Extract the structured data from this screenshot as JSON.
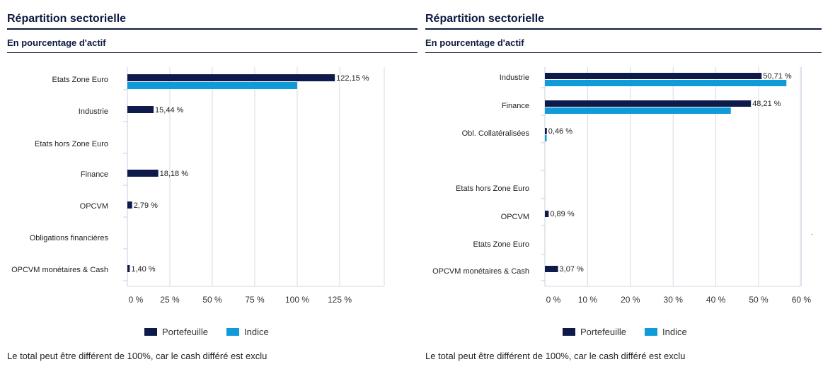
{
  "colors": {
    "portefeuille": "#0d1a4a",
    "indice": "#0e9bd8",
    "grid": "#d4dbe6",
    "rule": "#0b1a3f"
  },
  "left": {
    "title": "Répartition sectorielle",
    "subtitle": "En pourcentage d'actif",
    "legend": {
      "portefeuille": "Portefeuille",
      "indice": "Indice"
    },
    "note": "Le total peut être différent de 100%, car le cash différé est exclu"
  },
  "right": {
    "title": "Répartition sectorielle",
    "subtitle": "En pourcentage d'actif",
    "legend": {
      "portefeuille": "Portefeuille",
      "indice": "Indice"
    },
    "note": "Le total peut être différent de 100%, car le cash différé est exclu",
    "stray_mark": "."
  },
  "chart_data": [
    {
      "type": "bar",
      "orientation": "horizontal",
      "categories": [
        "Etats Zone Euro",
        "Industrie",
        "Etats hors Zone Euro",
        "Finance",
        "OPCVM",
        "Obligations financières",
        "OPCVM monétaires & Cash"
      ],
      "series": [
        {
          "name": "Portefeuille",
          "values": [
            122.15,
            15.44,
            null,
            18.18,
            2.79,
            null,
            1.4
          ],
          "labels": [
            "122,15 %",
            "15,44 %",
            "",
            "18,18 %",
            "2,79 %",
            "",
            "1,40 %"
          ]
        },
        {
          "name": "Indice",
          "values": [
            100,
            null,
            null,
            null,
            null,
            null,
            null
          ]
        }
      ],
      "ticks": [
        0,
        25,
        50,
        75,
        100,
        125
      ],
      "tick_labels": [
        "0 %",
        "25 %",
        "50 %",
        "75 %",
        "100 %",
        "125 %"
      ],
      "xlim": [
        0,
        150
      ],
      "grid": true,
      "legend": "bottom"
    },
    {
      "type": "bar",
      "orientation": "horizontal",
      "categories": [
        "Industrie",
        "Finance",
        "Obl. Collatéralisées",
        "",
        "Etats hors Zone Euro",
        "OPCVM",
        "Etats Zone Euro",
        "OPCVM monétaires & Cash"
      ],
      "series": [
        {
          "name": "Portefeuille",
          "values": [
            50.71,
            48.21,
            0.46,
            null,
            null,
            0.89,
            null,
            3.07
          ],
          "labels": [
            "50,71 %",
            "48,21 %",
            "0,46 %",
            "",
            "",
            "0,89 %",
            "",
            "3,07 %"
          ]
        },
        {
          "name": "Indice",
          "values": [
            56.5,
            43.5,
            0.3,
            null,
            null,
            null,
            null,
            null
          ]
        }
      ],
      "ticks": [
        0,
        10,
        20,
        30,
        40,
        50,
        60
      ],
      "tick_labels": [
        "0 %",
        "10 %",
        "20 %",
        "30 %",
        "40 %",
        "50 %",
        "60 %"
      ],
      "xlim": [
        0,
        60
      ],
      "grid": true,
      "legend": "bottom"
    }
  ]
}
